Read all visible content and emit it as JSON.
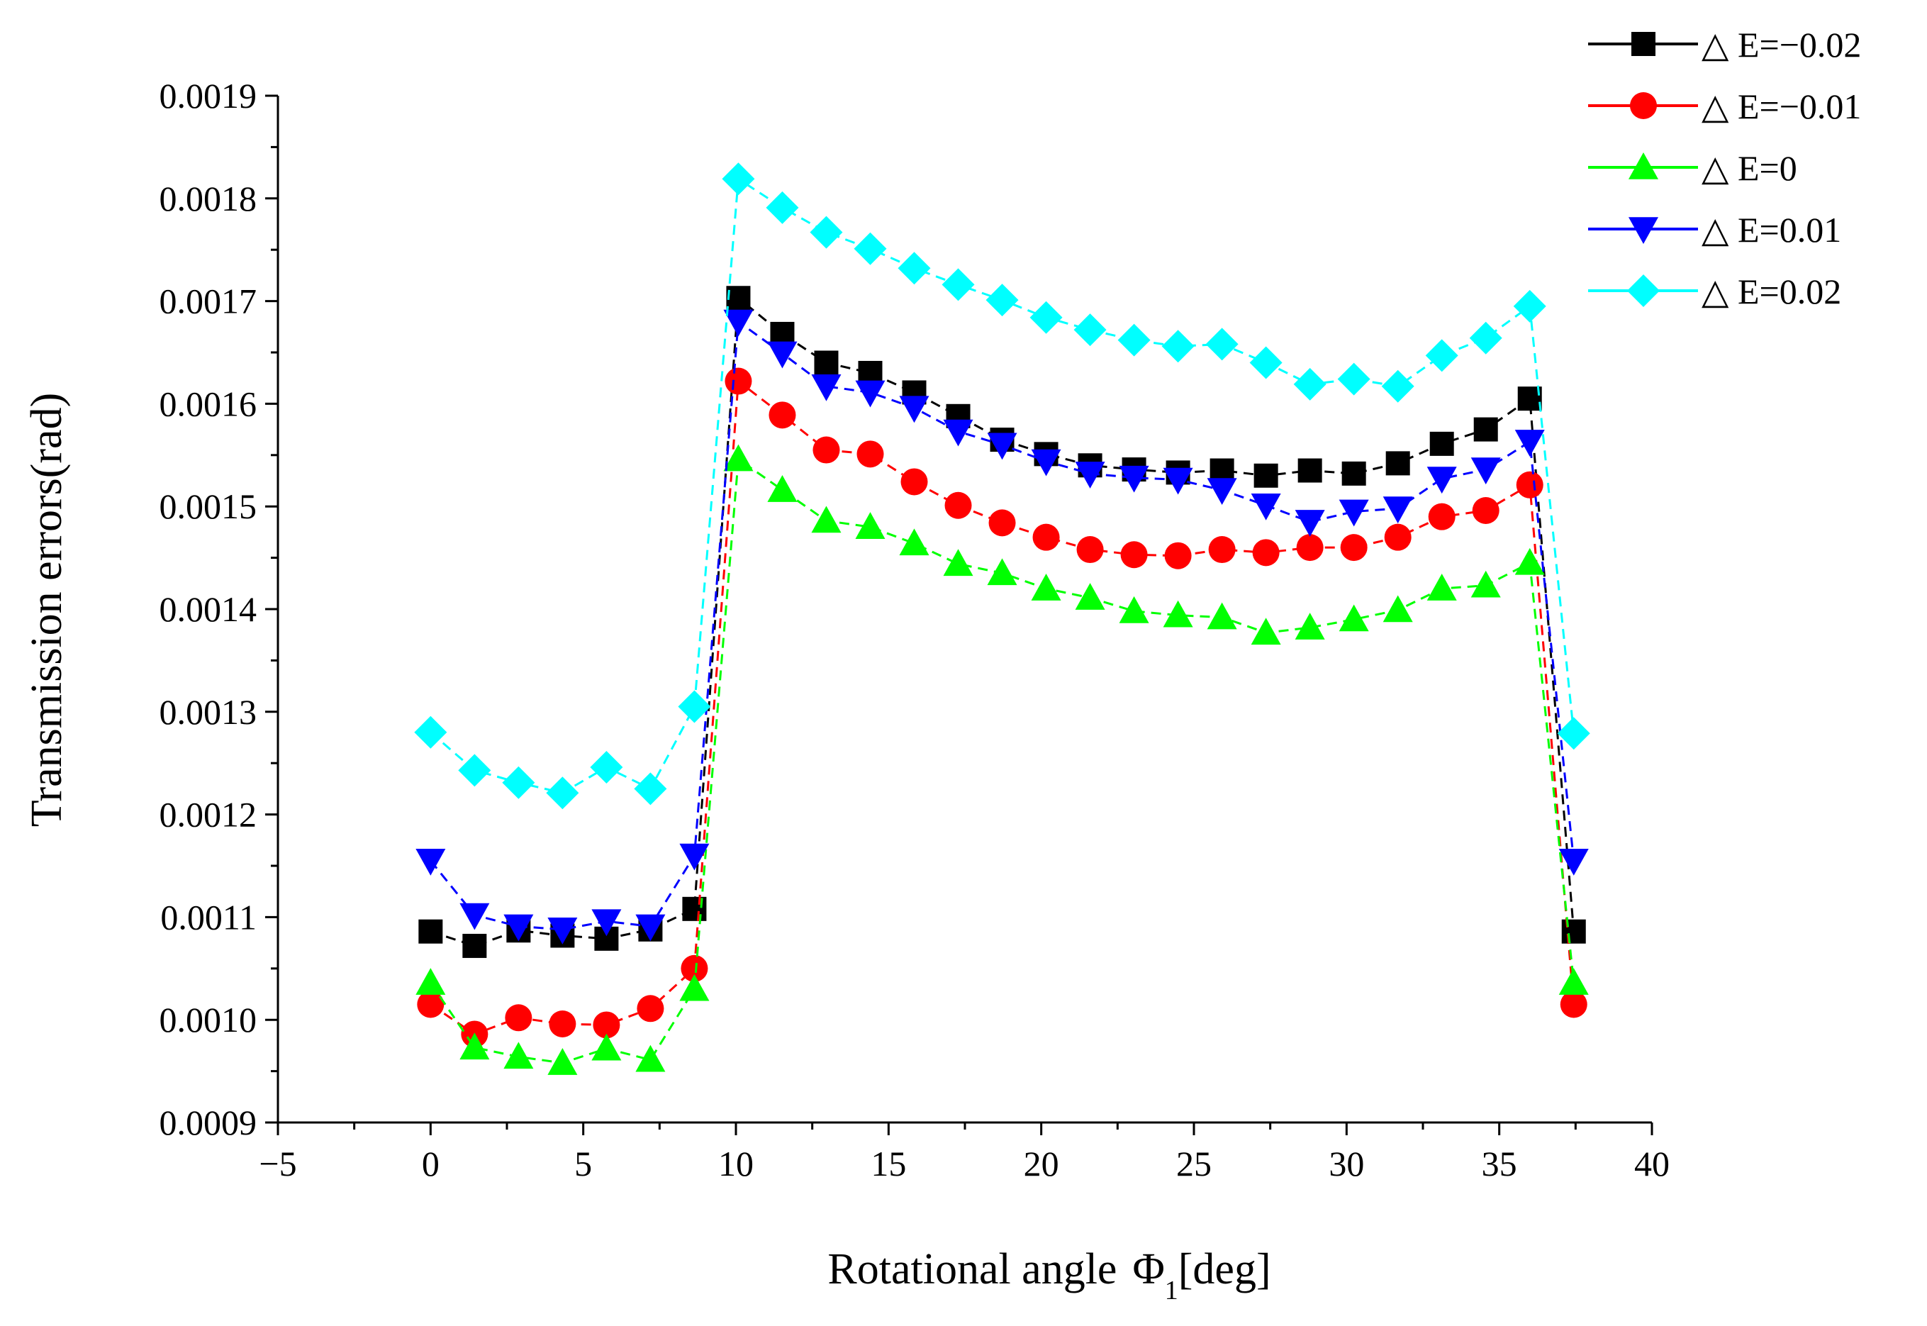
{
  "chart_data": {
    "type": "line",
    "title": "",
    "xlabel": "Rotational angle",
    "xlabel_symbol": "Φ",
    "xlabel_subscript": "1",
    "xlabel_unit": "[deg]",
    "ylabel": "Transmission errors(rad)",
    "xlim": [
      -5,
      40
    ],
    "ylim": [
      0.0009,
      0.0019
    ],
    "x_ticks": [
      "−5",
      "0",
      "5",
      "10",
      "15",
      "20",
      "25",
      "30",
      "35",
      "40"
    ],
    "x_tick_values": [
      -5,
      0,
      5,
      10,
      15,
      20,
      25,
      30,
      35,
      40
    ],
    "y_ticks": [
      "0.0009",
      "0.0010",
      "0.0011",
      "0.0012",
      "0.0013",
      "0.0014",
      "0.0015",
      "0.0016",
      "0.0017",
      "0.0018",
      "0.0019"
    ],
    "y_tick_values": [
      0.0009,
      0.001,
      0.0011,
      0.0012,
      0.0013,
      0.0014,
      0.0015,
      0.0016,
      0.0017,
      0.0018,
      0.0019
    ],
    "legend_position": "top-right",
    "grid": false,
    "series": [
      {
        "name": "△ E=−0.02",
        "color": "#000000",
        "marker": "square",
        "x": [
          0,
          1.44,
          2.88,
          4.32,
          5.76,
          7.2,
          8.64,
          10.08,
          11.52,
          12.96,
          14.4,
          15.84,
          17.28,
          18.72,
          20.16,
          21.6,
          23.04,
          24.48,
          25.92,
          27.36,
          28.8,
          30.24,
          31.68,
          33.12,
          34.56,
          36.0,
          37.44
        ],
        "values": [
          0.001086,
          0.001072,
          0.001087,
          0.001082,
          0.001079,
          0.001088,
          0.001108,
          0.001703,
          0.001668,
          0.00164,
          0.00163,
          0.001611,
          0.001588,
          0.001565,
          0.001551,
          0.00154,
          0.001536,
          0.001533,
          0.001535,
          0.00153,
          0.001535,
          0.001532,
          0.001542,
          0.001561,
          0.001575,
          0.001605,
          0.001086
        ]
      },
      {
        "name": "△ E=−0.01",
        "color": "#ff0000",
        "marker": "circle",
        "x": [
          0,
          1.44,
          2.88,
          4.32,
          5.76,
          7.2,
          8.64,
          10.08,
          11.52,
          12.96,
          14.4,
          15.84,
          17.28,
          18.72,
          20.16,
          21.6,
          23.04,
          24.48,
          25.92,
          27.36,
          28.8,
          30.24,
          31.68,
          33.12,
          34.56,
          36.0,
          37.44
        ],
        "values": [
          0.001015,
          0.000986,
          0.001002,
          0.000996,
          0.000995,
          0.001011,
          0.00105,
          0.001622,
          0.001589,
          0.001555,
          0.001551,
          0.001524,
          0.001501,
          0.001484,
          0.00147,
          0.001458,
          0.001453,
          0.001452,
          0.001458,
          0.001455,
          0.00146,
          0.00146,
          0.00147,
          0.00149,
          0.001496,
          0.001521,
          0.001015
        ]
      },
      {
        "name": "△ E=0",
        "color": "#00ff00",
        "marker": "triangle-up",
        "x": [
          0,
          1.44,
          2.88,
          4.32,
          5.76,
          7.2,
          8.64,
          10.08,
          11.52,
          12.96,
          14.4,
          15.84,
          17.28,
          18.72,
          20.16,
          21.6,
          23.04,
          24.48,
          25.92,
          27.36,
          28.8,
          30.24,
          31.68,
          33.12,
          34.56,
          36.0,
          37.44
        ],
        "values": [
          0.001036,
          0.000973,
          0.000964,
          0.000958,
          0.000972,
          0.000961,
          0.00103,
          0.001546,
          0.001516,
          0.001486,
          0.00148,
          0.001464,
          0.001444,
          0.001435,
          0.00142,
          0.001411,
          0.001398,
          0.001394,
          0.001392,
          0.001377,
          0.001382,
          0.00139,
          0.001399,
          0.00142,
          0.001423,
          0.001445,
          0.001036
        ]
      },
      {
        "name": "△ E=0.01",
        "color": "#0000ff",
        "marker": "triangle-down",
        "x": [
          0,
          1.44,
          2.88,
          4.32,
          5.76,
          7.2,
          8.64,
          10.08,
          11.52,
          12.96,
          14.4,
          15.84,
          17.28,
          18.72,
          20.16,
          21.6,
          23.04,
          24.48,
          25.92,
          27.36,
          28.8,
          30.24,
          31.68,
          33.12,
          34.56,
          36.0,
          37.44
        ],
        "values": [
          0.001155,
          0.001102,
          0.001091,
          0.001088,
          0.001096,
          0.001091,
          0.00116,
          0.00168,
          0.001649,
          0.001617,
          0.001611,
          0.001596,
          0.001573,
          0.00156,
          0.001544,
          0.001532,
          0.001528,
          0.001526,
          0.001516,
          0.001501,
          0.001485,
          0.001495,
          0.001498,
          0.001527,
          0.001536,
          0.001563,
          0.001155
        ]
      },
      {
        "name": "△ E=0.02",
        "color": "#00ffff",
        "marker": "diamond",
        "x": [
          0,
          1.44,
          2.88,
          4.32,
          5.76,
          7.2,
          8.64,
          10.08,
          11.52,
          12.96,
          14.4,
          15.84,
          17.28,
          18.72,
          20.16,
          21.6,
          23.04,
          24.48,
          25.92,
          27.36,
          28.8,
          30.24,
          31.68,
          33.12,
          34.56,
          36.0,
          37.44
        ],
        "values": [
          0.00128,
          0.001243,
          0.001231,
          0.001221,
          0.001246,
          0.001225,
          0.001305,
          0.001819,
          0.001791,
          0.001767,
          0.001751,
          0.001732,
          0.001716,
          0.001701,
          0.001684,
          0.001672,
          0.001662,
          0.001656,
          0.001658,
          0.00164,
          0.001619,
          0.001624,
          0.001617,
          0.001647,
          0.001664,
          0.001695,
          0.001279
        ]
      }
    ]
  }
}
